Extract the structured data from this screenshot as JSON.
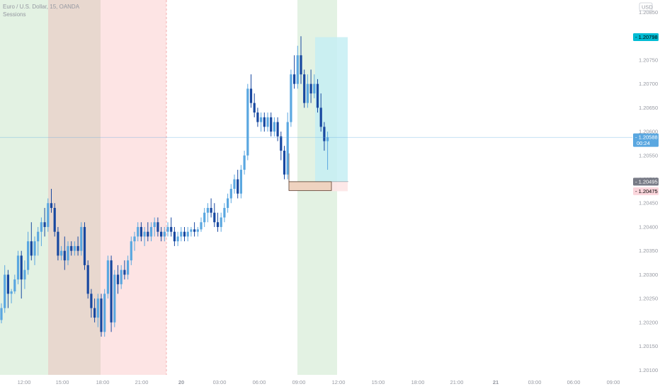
{
  "chart_data": {
    "type": "candlestick",
    "title": "Euro / U.S. Dollar, 15, OANDA",
    "indicator": "Sessions",
    "currency": "USD",
    "ylim": [
      1.2009,
      1.2087
    ],
    "y_ticks": [
      "1.20850",
      "1.20800",
      "1.20750",
      "1.20700",
      "1.20650",
      "1.20600",
      "1.20550",
      "1.20500",
      "1.20450",
      "1.20400",
      "1.20350",
      "1.20300",
      "1.20250",
      "1.20200",
      "1.20150",
      "1.20100"
    ],
    "x_ticks": [
      "12:00",
      "15:00",
      "18:00",
      "21:00",
      "20",
      "03:00",
      "06:00",
      "09:00",
      "12:00",
      "15:00",
      "18:00",
      "21:00",
      "21",
      "03:00",
      "06:00",
      "09:00"
    ],
    "price_tags": [
      {
        "label": "1.20798",
        "value": 1.20798,
        "color": "#00bcd4",
        "text_color": "#000000"
      },
      {
        "label": "1.20588",
        "sublabel": "00:24",
        "value": 1.20588,
        "color": "#5aa7e0",
        "text_color": "#ffffff"
      },
      {
        "label": "1.20495",
        "value": 1.20495,
        "color": "#787b86",
        "text_color": "#ffffff"
      },
      {
        "label": "1.20475",
        "value": 1.20475,
        "color": "#fbd6dc",
        "text_color": "#000000"
      }
    ],
    "current_price": 1.20588,
    "colors": {
      "up": "#5aa7e0",
      "down": "#1848a0",
      "session_green": "#e3f2e3",
      "session_brown": "#e8d8cf",
      "session_red": "#fde4e4",
      "target_box": "#c6eef3",
      "stop_box": "#fde6e6",
      "entry_box": "#efd3c0"
    },
    "candles": [
      [
        1.20205,
        1.2024,
        1.20198,
        1.2023
      ],
      [
        1.2023,
        1.2032,
        1.2022,
        1.203
      ],
      [
        1.203,
        1.2031,
        1.2023,
        1.2026
      ],
      [
        1.2026,
        1.2027,
        1.2024,
        1.20265
      ],
      [
        1.20265,
        1.203,
        1.2026,
        1.2029
      ],
      [
        1.2029,
        1.2035,
        1.2028,
        1.2034
      ],
      [
        1.2034,
        1.2035,
        1.2025,
        1.2029
      ],
      [
        1.2029,
        1.2033,
        1.2027,
        1.2031
      ],
      [
        1.2031,
        1.2039,
        1.203,
        1.2037
      ],
      [
        1.2037,
        1.2041,
        1.2033,
        1.2034
      ],
      [
        1.2034,
        1.2038,
        1.2032,
        1.2037
      ],
      [
        1.2037,
        1.204,
        1.2034,
        1.2039
      ],
      [
        1.2039,
        1.2042,
        1.2036,
        1.2041
      ],
      [
        1.2041,
        1.2044,
        1.2038,
        1.204
      ],
      [
        1.204,
        1.2046,
        1.2039,
        1.2045
      ],
      [
        1.2045,
        1.2048,
        1.2043,
        1.2044
      ],
      [
        1.2044,
        1.2045,
        1.2038,
        1.2039
      ],
      [
        1.2039,
        1.204,
        1.2033,
        1.2034
      ],
      [
        1.2034,
        1.2036,
        1.2033,
        1.2035
      ],
      [
        1.2035,
        1.2038,
        1.2031,
        1.2033
      ],
      [
        1.2033,
        1.2037,
        1.2032,
        1.2036
      ],
      [
        1.2036,
        1.2037,
        1.2034,
        1.2035
      ],
      [
        1.2035,
        1.2037,
        1.2034,
        1.2036
      ],
      [
        1.2036,
        1.2038,
        1.2034,
        1.2035
      ],
      [
        1.2035,
        1.2041,
        1.2034,
        1.204
      ],
      [
        1.204,
        1.2041,
        1.2031,
        1.2032
      ],
      [
        1.2032,
        1.2033,
        1.2025,
        1.2026
      ],
      [
        1.2026,
        1.2027,
        1.2021,
        1.2023
      ],
      [
        1.2023,
        1.2025,
        1.202,
        1.2021
      ],
      [
        1.2021,
        1.2026,
        1.2019,
        1.2025
      ],
      [
        1.2025,
        1.2026,
        1.2017,
        1.2018
      ],
      [
        1.2018,
        1.2027,
        1.2017,
        1.2026
      ],
      [
        1.2026,
        1.2034,
        1.2025,
        1.2033
      ],
      [
        1.2033,
        1.2034,
        1.2018,
        1.202
      ],
      [
        1.202,
        1.2031,
        1.2019,
        1.203
      ],
      [
        1.203,
        1.2032,
        1.2026,
        1.2028
      ],
      [
        1.2028,
        1.2032,
        1.2027,
        1.2031
      ],
      [
        1.2031,
        1.2033,
        1.2029,
        1.203
      ],
      [
        1.203,
        1.2034,
        1.2029,
        1.2033
      ],
      [
        1.2033,
        1.2038,
        1.2032,
        1.2037
      ],
      [
        1.2037,
        1.2039,
        1.2035,
        1.2038
      ],
      [
        1.2038,
        1.2041,
        1.2037,
        1.204
      ],
      [
        1.204,
        1.2041,
        1.2037,
        1.2038
      ],
      [
        1.2038,
        1.204,
        1.2036,
        1.2039
      ],
      [
        1.2039,
        1.2041,
        1.2037,
        1.2038
      ],
      [
        1.2038,
        1.2041,
        1.2037,
        1.204
      ],
      [
        1.204,
        1.2042,
        1.2038,
        1.2041
      ],
      [
        1.2041,
        1.2042,
        1.2038,
        1.2039
      ],
      [
        1.2039,
        1.204,
        1.2037,
        1.2038
      ],
      [
        1.2038,
        1.204,
        1.2037,
        1.2039
      ],
      [
        1.2039,
        1.2041,
        1.2038,
        1.204
      ],
      [
        1.204,
        1.2042,
        1.2038,
        1.2039
      ],
      [
        1.2039,
        1.204,
        1.2036,
        1.2037
      ],
      [
        1.2037,
        1.2039,
        1.2036,
        1.2038
      ],
      [
        1.2038,
        1.204,
        1.2037,
        1.2039
      ],
      [
        1.2039,
        1.204,
        1.2037,
        1.2038
      ],
      [
        1.2038,
        1.204,
        1.2037,
        1.2039
      ],
      [
        1.2039,
        1.204,
        1.2038,
        1.20395
      ],
      [
        1.20395,
        1.2041,
        1.2038,
        1.2039
      ],
      [
        1.2039,
        1.204,
        1.2038,
        1.20395
      ],
      [
        1.20395,
        1.2042,
        1.2039,
        1.2041
      ],
      [
        1.2041,
        1.2044,
        1.204,
        1.2043
      ],
      [
        1.2043,
        1.2045,
        1.2041,
        1.2044
      ],
      [
        1.2044,
        1.2046,
        1.2042,
        1.2043
      ],
      [
        1.2043,
        1.2045,
        1.204,
        1.2041
      ],
      [
        1.2041,
        1.2043,
        1.2039,
        1.204
      ],
      [
        1.204,
        1.2043,
        1.2039,
        1.2042
      ],
      [
        1.2042,
        1.2045,
        1.2041,
        1.2044
      ],
      [
        1.2044,
        1.2047,
        1.2043,
        1.2046
      ],
      [
        1.2046,
        1.2049,
        1.2045,
        1.2048
      ],
      [
        1.2048,
        1.2051,
        1.2047,
        1.205
      ],
      [
        1.205,
        1.2052,
        1.2046,
        1.2047
      ],
      [
        1.2047,
        1.2053,
        1.2046,
        1.2052
      ],
      [
        1.2052,
        1.2056,
        1.2051,
        1.2055
      ],
      [
        1.2055,
        1.207,
        1.2054,
        1.2069
      ],
      [
        1.2069,
        1.2072,
        1.2065,
        1.2066
      ],
      [
        1.2066,
        1.2068,
        1.2063,
        1.2064
      ],
      [
        1.2064,
        1.2065,
        1.2061,
        1.2062
      ],
      [
        1.2062,
        1.2064,
        1.206,
        1.2063
      ],
      [
        1.2063,
        1.2064,
        1.206,
        1.2061
      ],
      [
        1.2061,
        1.2064,
        1.206,
        1.2063
      ],
      [
        1.2063,
        1.2064,
        1.2059,
        1.206
      ],
      [
        1.206,
        1.2063,
        1.2059,
        1.2062
      ],
      [
        1.2062,
        1.2063,
        1.2058,
        1.2059
      ],
      [
        1.2059,
        1.206,
        1.2054,
        1.2056
      ],
      [
        1.2056,
        1.2057,
        1.205,
        1.2051
      ],
      [
        1.2051,
        1.2064,
        1.205,
        1.2062
      ],
      [
        1.2062,
        1.2073,
        1.2061,
        1.2072
      ],
      [
        1.2072,
        1.2076,
        1.2069,
        1.207
      ],
      [
        1.207,
        1.2078,
        1.2069,
        1.2076
      ],
      [
        1.2076,
        1.208,
        1.207,
        1.2072
      ],
      [
        1.2072,
        1.2073,
        1.2065,
        1.2066
      ],
      [
        1.2066,
        1.2072,
        1.2065,
        1.207
      ],
      [
        1.207,
        1.2073,
        1.2066,
        1.2068
      ],
      [
        1.2068,
        1.2072,
        1.2067,
        1.207
      ],
      [
        1.207,
        1.2071,
        1.2064,
        1.2065
      ],
      [
        1.2065,
        1.2068,
        1.206,
        1.2061
      ],
      [
        1.2061,
        1.2062,
        1.2056,
        1.2058
      ],
      [
        1.2058,
        1.206,
        1.2052,
        1.20588
      ]
    ]
  }
}
